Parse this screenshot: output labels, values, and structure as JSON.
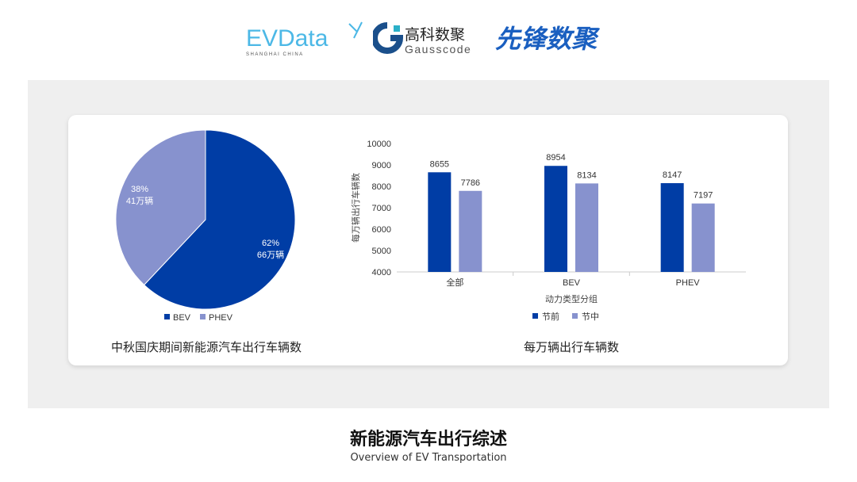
{
  "logos": {
    "evdata": "EVData",
    "evdata_sub": "SHANGHAI CHINA",
    "gauss_cn": "高科数聚",
    "gauss_en": "Gausscode",
    "xianfeng": "先锋数聚"
  },
  "colors": {
    "dark": "#003da5",
    "light": "#8792ce"
  },
  "captions": {
    "pie": "中秋国庆期间新能源汽车出行车辆数",
    "bar": "每万辆出行车辆数"
  },
  "footer": {
    "title": "新能源汽车出行综述",
    "subtitle": "Overview of EV Transportation"
  },
  "chart_data": [
    {
      "type": "pie",
      "slices": [
        {
          "name": "BEV",
          "percent": 62,
          "label": "66万辆"
        },
        {
          "name": "PHEV",
          "percent": 38,
          "label": "41万辆"
        }
      ],
      "legend": "bottom"
    },
    {
      "type": "bar",
      "categories": [
        "全部",
        "BEV",
        "PHEV"
      ],
      "series": [
        {
          "name": "节前",
          "values": [
            8655,
            8954,
            8147
          ]
        },
        {
          "name": "节中",
          "values": [
            7786,
            8134,
            7197
          ]
        }
      ],
      "xlabel": "动力类型分组",
      "ylabel": "每万辆出行车辆数",
      "ylim": [
        4000,
        10000
      ],
      "yticks": [
        4000,
        5000,
        6000,
        7000,
        8000,
        9000,
        10000
      ],
      "grid": false,
      "legend": "bottom"
    }
  ]
}
